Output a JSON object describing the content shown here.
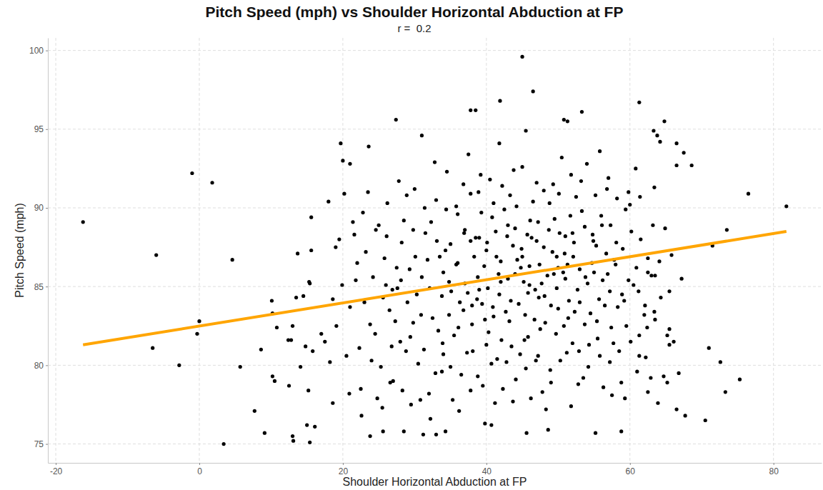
{
  "chart_data": {
    "type": "scatter",
    "title": "Pitch Speed (mph) vs Shoulder Horizontal Abduction at FP",
    "subtitle": "r =  0.2",
    "x_label": "Shoulder Horizontal Abduction at FP",
    "y_label": "Pitch Speed (mph)",
    "xlim": [
      -21.1,
      86.7
    ],
    "ylim": [
      73.8,
      100.8
    ],
    "xticks": [
      -20,
      0,
      20,
      40,
      60,
      80
    ],
    "yticks": [
      75,
      80,
      85,
      90,
      95,
      100
    ],
    "grid": true,
    "series": [
      {
        "type": "scatter",
        "color": "#000000",
        "marker": "circle",
        "x": [
          -16.2,
          -6,
          -6.5,
          -2.8,
          -1,
          0,
          -0.3,
          1.8,
          3.4,
          4.6,
          5.7,
          7.7,
          8.6,
          9.1,
          10.1,
          10.2,
          10.2,
          10.5,
          10.8,
          12.4,
          12.5,
          12.8,
          13,
          13.1,
          13,
          13.5,
          13.7,
          14.1,
          14.5,
          14.8,
          15,
          15.2,
          15.3,
          15.4,
          15.4,
          15.6,
          15.6,
          15.8,
          16.1,
          17,
          17.5,
          18,
          18.2,
          18.6,
          18.6,
          19,
          19.5,
          19.7,
          20,
          20.2,
          21,
          21.4,
          27.4,
          31,
          37.8,
          38.5,
          45,
          45.5,
          46.5,
          41.9,
          50.8,
          51.3,
          53.3,
          61.3,
          64.8,
          63.3,
          63.8,
          64.2,
          66.5,
          67.5,
          66.5,
          68.6,
          76.5,
          81.8,
          73.5,
          71.5,
          70.5,
          71,
          72.6,
          73.3,
          75.3,
          67.7,
          66.5,
          67.2,
          65.8,
          66.8,
          65.2,
          64.7,
          64.3,
          63,
          63.5,
          62.5,
          65.5,
          65.5,
          65.2,
          63.5,
          63.4,
          62.4,
          62.5,
          61.3,
          58.8,
          55.2,
          48.6,
          45.6,
          40.7,
          34.3,
          33,
          31.2,
          28.5,
          25.6,
          23.8,
          22,
          23,
          24,
          22.5,
          25,
          24.5,
          26,
          23.5,
          25.5,
          26.5,
          27,
          27.5,
          28,
          28.5,
          29,
          29.5,
          30,
          28.2,
          29.8,
          30.5,
          31,
          31.5,
          32,
          32.5,
          33,
          33.5,
          34,
          34.5,
          32.2,
          33.8,
          35,
          35.5,
          36,
          36.5,
          37,
          37.5,
          38,
          38.5,
          36.2,
          37.8,
          39,
          39.5,
          40,
          40.5,
          41,
          41.5,
          42,
          42.5,
          39.8,
          41.8,
          43,
          43.5,
          44,
          44.5,
          45,
          45.5,
          46,
          46.5,
          43.7,
          45.8,
          47,
          47.5,
          48,
          48.5,
          49,
          49.5,
          50,
          50.5,
          47.2,
          49.8,
          51,
          51.5,
          52,
          52.5,
          53,
          53.5,
          54,
          54.5,
          51.8,
          53.7,
          55,
          55.5,
          56,
          56.5,
          57,
          57.5,
          58,
          58.5,
          55.8,
          57.2,
          59,
          59.5,
          60,
          60.5,
          61,
          61.5,
          62,
          62.5,
          59.3,
          60.8,
          21,
          22.3,
          23.2,
          24.2,
          25.3,
          26.2,
          27.3,
          28.3,
          29.3,
          30.3,
          31.3,
          32.3,
          33.3,
          34.3,
          35.3,
          36.3,
          37.3,
          38.3,
          39.3,
          40.3,
          41.3,
          42.3,
          43.3,
          44.3,
          45.3,
          46.3,
          47.3,
          48.3,
          49.3,
          50.3,
          51.3,
          52.3,
          53.3,
          54.3,
          55.3,
          56.3,
          57.3,
          58.3,
          59.8,
          61.3,
          38.7,
          39.7,
          40.7,
          41.7,
          42.7,
          43.7,
          44.7,
          45.7,
          46.7,
          47.7,
          48.7,
          49.7,
          50.7,
          51.7,
          52.7,
          53.7,
          54.7,
          55.7,
          56.7,
          57.7,
          34.8,
          35.8,
          36.8,
          37.8,
          38.8,
          39.2,
          40.2,
          41.2,
          42.2,
          43.2,
          44.2,
          45.2,
          46.2,
          47.2,
          48.2,
          49.2,
          50.2,
          51.2,
          52.2,
          53.2,
          54.2,
          55.2,
          56.2,
          57.2,
          58.2,
          59.2,
          60.2,
          61.2,
          62.2,
          63.2,
          20.5,
          21.8,
          22.8,
          23.8,
          24.8,
          25.8,
          26.8,
          27.8,
          28.8,
          29.8,
          30.8,
          31.8,
          32.8,
          33.8,
          34.8,
          35.8,
          36.8,
          37.8,
          38.8,
          39.8,
          40.8,
          41.8,
          42.8,
          43.8,
          44.8,
          45.8,
          46.8,
          47.8,
          48.8,
          49.8,
          50.8,
          51.8,
          52.8,
          53.8,
          54.8,
          55.8,
          56.8,
          57.8,
          58.8,
          59.8,
          40.1,
          40.9,
          41.4,
          42.1,
          42.9,
          43.4,
          44.1,
          44.9,
          45.4,
          46.1,
          46.9,
          47.4,
          48.1,
          48.9,
          49.4,
          50.1,
          50.9,
          51.4,
          52.1,
          52.9,
          36.1,
          36.9,
          37.4,
          38.1,
          38.9,
          39.4,
          33.1,
          33.9,
          34.4,
          35.1,
          30.1,
          30.9,
          31.4,
          32.1,
          32.9,
          28.1,
          28.9,
          29.4,
          26.1,
          26.9,
          54.1,
          54.9,
          55.4,
          56.1,
          56.9,
          57.4,
          58.1,
          58.9,
          59.4,
          60.1,
          60.9,
          61.4,
          62.1,
          62.9,
          63.4,
          64.1,
          64.9,
          65.5,
          66.1,
          63.9,
          19.1,
          19.9,
          20.9,
          21.6,
          22.6,
          23.6,
          24.6,
          25.6,
          26.6,
          27.6,
          44,
          45,
          43,
          42,
          46,
          47,
          48,
          49,
          50,
          41,
          40,
          39,
          38,
          37,
          36,
          35,
          34,
          53,
          52,
          51
        ],
        "values": [
          89.1,
          87,
          81.1,
          80,
          92.2,
          82.8,
          82,
          91.6,
          75,
          86.7,
          79.9,
          77.1,
          81,
          75.7,
          84.1,
          83.3,
          79.3,
          79,
          82.4,
          81.6,
          78.7,
          81.6,
          75.5,
          75.2,
          82.5,
          84.3,
          87.1,
          79.9,
          84.4,
          81.2,
          76.2,
          78.4,
          85.3,
          75.1,
          85.2,
          89.4,
          87.3,
          80.9,
          76.1,
          82,
          81.5,
          90.4,
          80.2,
          84.2,
          77.6,
          87.5,
          88,
          94.1,
          93,
          90.9,
          92.8,
          89.1,
          95.6,
          94.6,
          96.2,
          96.2,
          99.6,
          94.9,
          97.4,
          96.8,
          95.6,
          95.5,
          96.1,
          96.7,
          95.5,
          94.9,
          94.6,
          94.2,
          94.1,
          93.5,
          92.7,
          92.7,
          90.9,
          90.1,
          88.6,
          87.6,
          76.5,
          81.1,
          80.2,
          78.3,
          79.1,
          76.8,
          77.2,
          85.5,
          87,
          79.5,
          78.9,
          79.3,
          84.3,
          85.7,
          85.7,
          85.9,
          82.3,
          81.3,
          81.9,
          82.9,
          83.4,
          82.4,
          78.3,
          80.6,
          75.8,
          75.7,
          75.9,
          75.7,
          76.2,
          75.8,
          75.6,
          75.6,
          75.8,
          75.8,
          75.5,
          86.5,
          84,
          80.3,
          78.5,
          88.9,
          82,
          85.1,
          91,
          77.3,
          83.5,
          79,
          86.2,
          81.5,
          89.2,
          84,
          77.5,
          91.2,
          87.8,
          82.7,
          80.1,
          85.6,
          88.4,
          78.2,
          83,
          90.5,
          86.9,
          80.7,
          92.3,
          76.6,
          84.4,
          87.7,
          81.9,
          89.6,
          79.4,
          85.2,
          93.4,
          82.6,
          88.1,
          77.1,
          90.9,
          84.8,
          78.7,
          87.3,
          91.8,
          83.1,
          80.4,
          86.6,
          89.9,
          76.3,
          94.1,
          85.5,
          81.2,
          88.7,
          83.9,
          92.6,
          79.8,
          86.3,
          90.4,
          77.7,
          84.6,
          87.9,
          82.3,
          91.1,
          85.7,
          78.9,
          89.3,
          83.6,
          93.2,
          80.6,
          86.9,
          88.2,
          84.1,
          81.4,
          90.7,
          86.1,
          79.2,
          92.8,
          83.3,
          77.4,
          88.8,
          85.9,
          81.7,
          89.5,
          83.8,
          91.9,
          78.1,
          86.4,
          80.9,
          93.6,
          84.7,
          87.4,
          82.5,
          90.2,
          85.1,
          79.6,
          88,
          83.2,
          86.8,
          77.9,
          92.5,
          83.7,
          81.1,
          87.2,
          85.6,
          79.9,
          90.3,
          82.8,
          78.4,
          86.1,
          84.5,
          81,
          89.1,
          82.2,
          87.3,
          77.8,
          84,
          80.8,
          86.9,
          89.7,
          82.1,
          88.5,
          78.5,
          90.8,
          86.7,
          81.6,
          88.1,
          84.3,
          77.2,
          91.5,
          80.3,
          86.4,
          83.4,
          89.8,
          81.3,
          87.6,
          78.6,
          88.9,
          83.7,
          85.4,
          81.9,
          84.2,
          86.3,
          80.1,
          85.8,
          83.4,
          87.6,
          80.7,
          88.3,
          82.9,
          85.2,
          88.6,
          82,
          85.9,
          89.5,
          84.8,
          82.6,
          86.5,
          84.2,
          87.1,
          81.4,
          85.3,
          90.1,
          83.5,
          87.9,
          79.3,
          92.1,
          84.9,
          77.6,
          91.4,
          82.8,
          90.1,
          85.3,
          77.9,
          89.1,
          82.7,
          87.2,
          88.4,
          80.8,
          87.8,
          91.7,
          79.9,
          90.8,
          85.4,
          80.2,
          90.6,
          84.1,
          88.5,
          84.7,
          80.5,
          88.9,
          80.6,
          85.4,
          89.7,
          82.6,
          77.9,
          86.8,
          81.2,
          91.7,
          80.9,
          88.6,
          77.8,
          86.7,
          92.9,
          79.6,
          83.2,
          86.4,
          91.5,
          78.4,
          85.6,
          82.9,
          89.4,
          84.5,
          80.2,
          92.4,
          86.2,
          81.8,
          84.8,
          78.3,
          90.3,
          84.9,
          82.5,
          92.1,
          78.8,
          85.6,
          88.3,
          80.6,
          91.2,
          86.7,
          78.9,
          91,
          87.8,
          83.7,
          86.9,
          81.6,
          88.2,
          84.1,
          79.1,
          87.4,
          83.2,
          89.2,
          80.3,
          86.4,
          84.4,
          79.7,
          85.8,
          90.9,
          87.1,
          83,
          86.9,
          80.9,
          82.4,
          88.4,
          84.6,
          80.9,
          91,
          83.9,
          87.9,
          81.4,
          89.9,
          84.7,
          86.9,
          83.2,
          90,
          84.9,
          79.5,
          85.4,
          90.8,
          81.8,
          88.2,
          84.8,
          85.2,
          87.9,
          82.8,
          88.9,
          85.8,
          82.4,
          87.8,
          84.5,
          89.9,
          81.5,
          86.2,
          90.7,
          83.8,
          79.2,
          91.3,
          86.6,
          88.7,
          84.7,
          81.5,
          77.6,
          82.5,
          85.1,
          78.2,
          88.3,
          76.8,
          93.9,
          88.6,
          84.3,
          78.9,
          84.9,
          85.8,
          86.9,
          88.9,
          85.3,
          85.1,
          91.6,
          87.5,
          83.8,
          86.2,
          90.3,
          81.3,
          88.1,
          83.8,
          88.6,
          86.5,
          79.9,
          85.9,
          84,
          88.4,
          85.5
        ]
      },
      {
        "type": "line",
        "color": "#FFA500",
        "line_style": "solid",
        "x": [
          -16.2,
          81.8
        ],
        "values": [
          81.3,
          88.5
        ]
      }
    ]
  }
}
